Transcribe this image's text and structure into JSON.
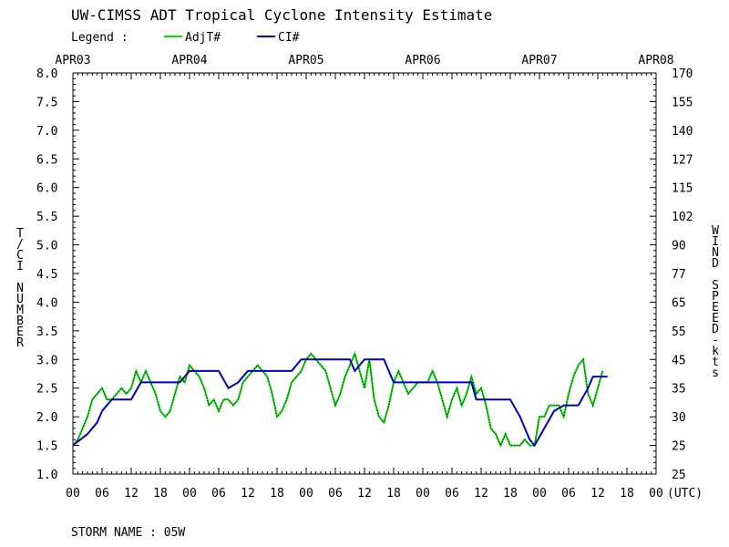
{
  "chart_data": {
    "type": "line",
    "title": "UW-CIMSS ADT Tropical Cyclone Intensity Estimate",
    "legend": {
      "label": "Legend :",
      "entries": [
        {
          "name": "AdjT#",
          "color": "#00e000"
        },
        {
          "name": "CI#",
          "color": "#0000c0"
        }
      ]
    },
    "ylabel": "T/CI NUMBER",
    "y2label": "WIND SPEED-kts",
    "xlabel_unit": "(UTC)",
    "ylim": [
      1.0,
      8.0
    ],
    "yticks": [
      "1.0",
      "1.5",
      "2.0",
      "2.5",
      "3.0",
      "3.5",
      "4.0",
      "4.5",
      "5.0",
      "5.5",
      "6.0",
      "6.5",
      "7.0",
      "7.5",
      "8.0"
    ],
    "y2ticks": [
      "25",
      "25",
      "30",
      "35",
      "45",
      "55",
      "65",
      "77",
      "90",
      "102",
      "115",
      "127",
      "140",
      "155",
      "170"
    ],
    "xlim_hours": [
      0,
      120
    ],
    "date_labels": [
      "APR03",
      "APR04",
      "APR05",
      "APR06",
      "APR07",
      "APR08"
    ],
    "hour_labels": [
      "00",
      "06",
      "12",
      "18",
      "00",
      "06",
      "12",
      "18",
      "00",
      "06",
      "12",
      "18",
      "00",
      "06",
      "12",
      "18",
      "00",
      "06",
      "12",
      "18",
      "00"
    ],
    "series": [
      {
        "name": "AdjT#",
        "color": "#00e000",
        "points": [
          [
            0,
            1.5
          ],
          [
            1,
            1.6
          ],
          [
            2,
            1.8
          ],
          [
            3,
            2.0
          ],
          [
            4,
            2.3
          ],
          [
            5,
            2.4
          ],
          [
            6,
            2.5
          ],
          [
            7,
            2.3
          ],
          [
            8,
            2.3
          ],
          [
            9,
            2.4
          ],
          [
            10,
            2.5
          ],
          [
            11,
            2.4
          ],
          [
            12,
            2.5
          ],
          [
            13,
            2.8
          ],
          [
            14,
            2.6
          ],
          [
            15,
            2.8
          ],
          [
            16,
            2.6
          ],
          [
            17,
            2.4
          ],
          [
            18,
            2.1
          ],
          [
            19,
            2.0
          ],
          [
            20,
            2.1
          ],
          [
            21,
            2.4
          ],
          [
            22,
            2.7
          ],
          [
            23,
            2.6
          ],
          [
            24,
            2.9
          ],
          [
            25,
            2.8
          ],
          [
            26,
            2.7
          ],
          [
            27,
            2.5
          ],
          [
            28,
            2.2
          ],
          [
            29,
            2.3
          ],
          [
            30,
            2.1
          ],
          [
            31,
            2.3
          ],
          [
            32,
            2.3
          ],
          [
            33,
            2.2
          ],
          [
            34,
            2.3
          ],
          [
            35,
            2.6
          ],
          [
            36,
            2.7
          ],
          [
            37,
            2.8
          ],
          [
            38,
            2.9
          ],
          [
            39,
            2.8
          ],
          [
            40,
            2.7
          ],
          [
            41,
            2.4
          ],
          [
            42,
            2.0
          ],
          [
            43,
            2.1
          ],
          [
            44,
            2.3
          ],
          [
            45,
            2.6
          ],
          [
            46,
            2.7
          ],
          [
            47,
            2.8
          ],
          [
            48,
            3.0
          ],
          [
            49,
            3.1
          ],
          [
            50,
            3.0
          ],
          [
            51,
            2.9
          ],
          [
            52,
            2.8
          ],
          [
            53,
            2.5
          ],
          [
            54,
            2.2
          ],
          [
            55,
            2.4
          ],
          [
            56,
            2.7
          ],
          [
            57,
            2.9
          ],
          [
            58,
            3.1
          ],
          [
            59,
            2.8
          ],
          [
            60,
            2.5
          ],
          [
            61,
            3.0
          ],
          [
            62,
            2.3
          ],
          [
            63,
            2.0
          ],
          [
            64,
            1.9
          ],
          [
            65,
            2.2
          ],
          [
            66,
            2.6
          ],
          [
            67,
            2.8
          ],
          [
            68,
            2.6
          ],
          [
            69,
            2.4
          ],
          [
            70,
            2.5
          ],
          [
            71,
            2.6
          ],
          [
            72,
            2.6
          ],
          [
            73,
            2.6
          ],
          [
            74,
            2.8
          ],
          [
            75,
            2.6
          ],
          [
            76,
            2.3
          ],
          [
            77,
            2.0
          ],
          [
            78,
            2.3
          ],
          [
            79,
            2.5
          ],
          [
            80,
            2.2
          ],
          [
            81,
            2.4
          ],
          [
            82,
            2.7
          ],
          [
            83,
            2.4
          ],
          [
            84,
            2.5
          ],
          [
            85,
            2.2
          ],
          [
            86,
            1.8
          ],
          [
            87,
            1.7
          ],
          [
            88,
            1.5
          ],
          [
            89,
            1.7
          ],
          [
            90,
            1.5
          ],
          [
            91,
            1.5
          ],
          [
            92,
            1.5
          ],
          [
            93,
            1.6
          ],
          [
            94,
            1.5
          ],
          [
            95,
            1.5
          ],
          [
            96,
            2.0
          ],
          [
            97,
            2.0
          ],
          [
            98,
            2.2
          ],
          [
            99,
            2.2
          ],
          [
            100,
            2.2
          ],
          [
            101,
            2.0
          ],
          [
            102,
            2.4
          ],
          [
            103,
            2.7
          ],
          [
            104,
            2.9
          ],
          [
            105,
            3.0
          ],
          [
            106,
            2.4
          ],
          [
            107,
            2.2
          ],
          [
            108,
            2.5
          ],
          [
            109,
            2.8
          ]
        ]
      },
      {
        "name": "CI#",
        "color": "#0000c0",
        "points": [
          [
            0,
            1.5
          ],
          [
            3,
            1.7
          ],
          [
            5,
            1.9
          ],
          [
            6,
            2.1
          ],
          [
            7,
            2.2
          ],
          [
            8,
            2.3
          ],
          [
            12,
            2.3
          ],
          [
            14,
            2.6
          ],
          [
            22,
            2.6
          ],
          [
            24,
            2.8
          ],
          [
            30,
            2.8
          ],
          [
            32,
            2.5
          ],
          [
            34,
            2.6
          ],
          [
            36,
            2.8
          ],
          [
            45,
            2.8
          ],
          [
            47,
            3.0
          ],
          [
            57,
            3.0
          ],
          [
            58,
            2.8
          ],
          [
            60,
            3.0
          ],
          [
            64,
            3.0
          ],
          [
            66,
            2.6
          ],
          [
            78,
            2.6
          ],
          [
            82,
            2.6
          ],
          [
            83,
            2.3
          ],
          [
            90,
            2.3
          ],
          [
            92,
            2.0
          ],
          [
            93,
            1.8
          ],
          [
            94,
            1.6
          ],
          [
            95,
            1.5
          ],
          [
            97,
            1.8
          ],
          [
            99,
            2.1
          ],
          [
            101,
            2.2
          ],
          [
            104,
            2.2
          ],
          [
            106,
            2.5
          ],
          [
            107,
            2.7
          ],
          [
            110,
            2.7
          ]
        ]
      }
    ]
  },
  "footer": {
    "storm_name": "STORM NAME : 05W"
  }
}
